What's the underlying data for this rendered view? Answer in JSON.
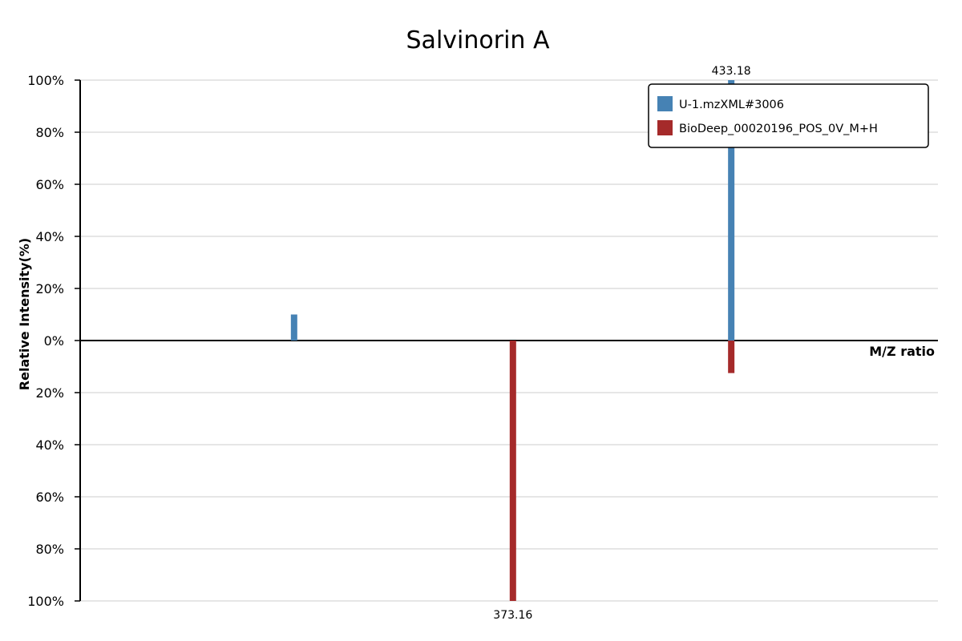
{
  "chart_data": {
    "type": "bar",
    "title": "Salvinorin A",
    "xlabel": "M/Z ratio",
    "ylabel": "Relative Intensity(%)",
    "ylim": [
      -100,
      100
    ],
    "y_ticks": [
      "100%",
      "80%",
      "60%",
      "40%",
      "20%",
      "0%",
      "20%",
      "40%",
      "60%",
      "80%",
      "100%"
    ],
    "grid": true,
    "legend_position": "top-right",
    "series": [
      {
        "name": "U-1.mzXML#3006",
        "color": "#4682b4",
        "direction": "up",
        "peaks": [
          {
            "mz": 313.0,
            "intensity": 10
          },
          {
            "mz": 433.18,
            "intensity": 100,
            "label": "433.18"
          }
        ]
      },
      {
        "name": "BioDeep_00020196_POS_0V_M+H",
        "color": "#a52a2a",
        "direction": "down",
        "peaks": [
          {
            "mz": 373.16,
            "intensity": 100,
            "label": "373.16"
          },
          {
            "mz": 433.18,
            "intensity": 12.5
          }
        ]
      }
    ],
    "x_domain": [
      254.2,
      490.0
    ]
  }
}
